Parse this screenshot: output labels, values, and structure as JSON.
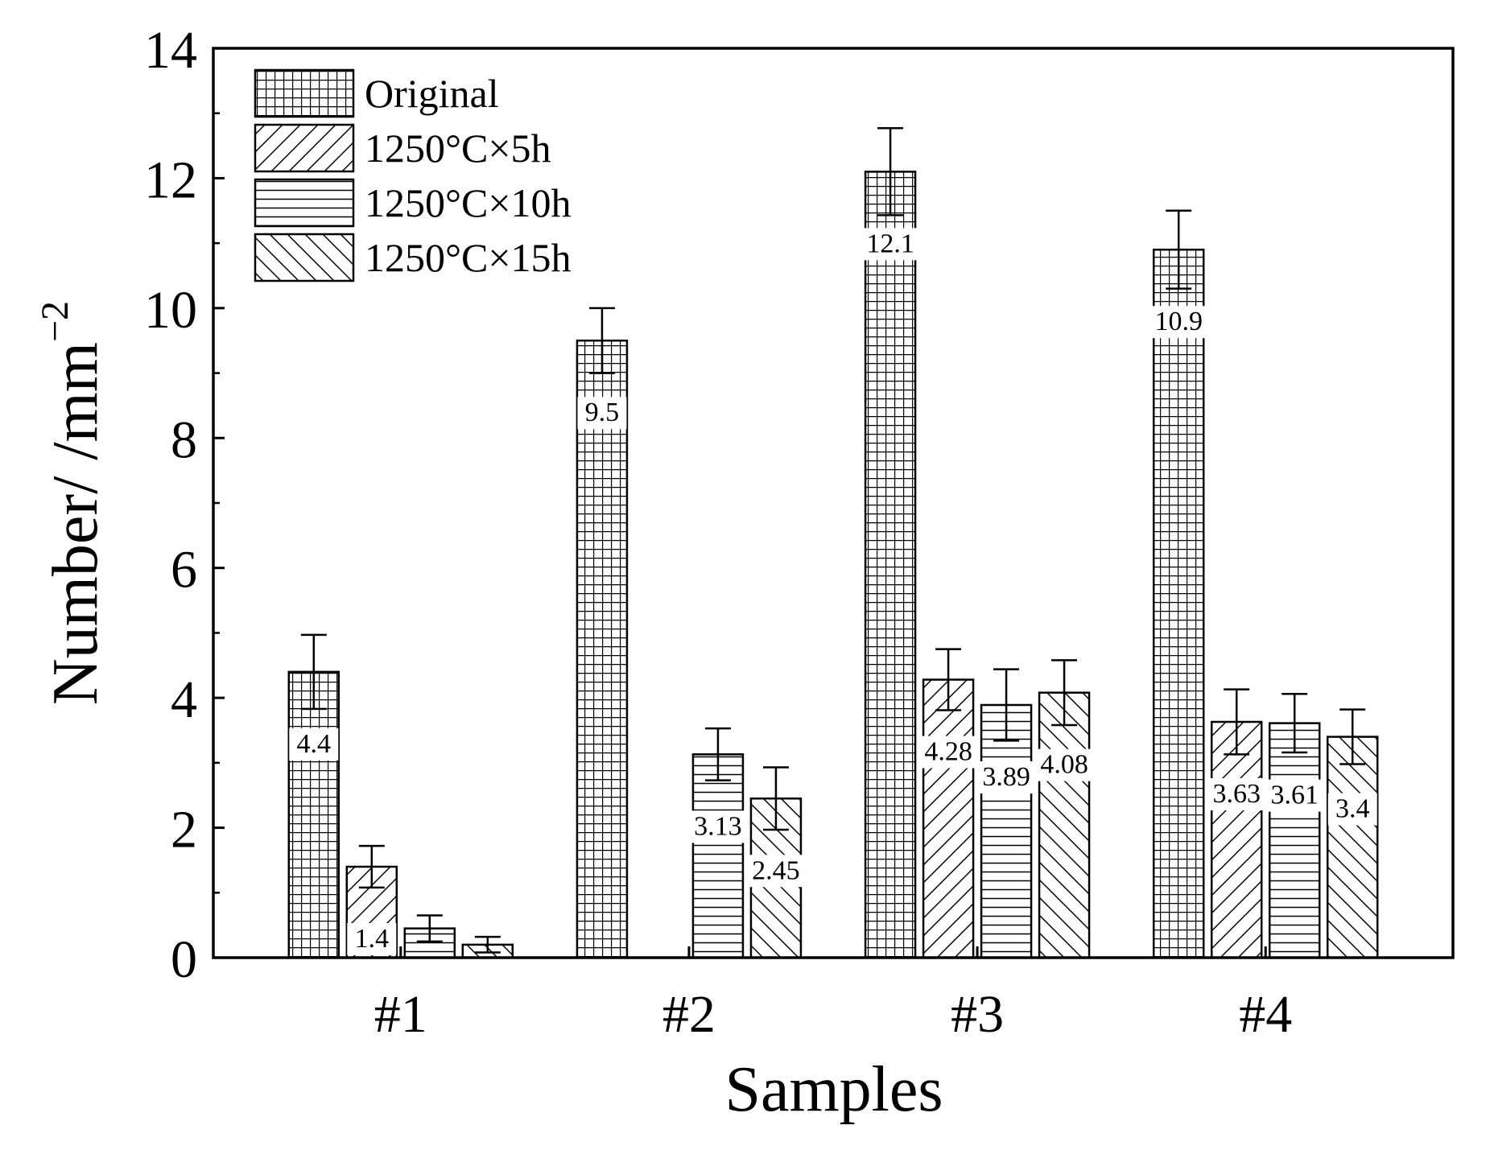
{
  "chart_data": {
    "type": "bar",
    "title": "",
    "xlabel": "Samples",
    "ylabel": "Number/ /mm",
    "ylabel_superscript": "−2",
    "categories": [
      "#1",
      "#2",
      "#3",
      "#4"
    ],
    "ylim": [
      0,
      14
    ],
    "yticks": [
      "0",
      "2",
      "4",
      "6",
      "8",
      "10",
      "12",
      "14"
    ],
    "legend_position": "top-left",
    "series": [
      {
        "name": "Original",
        "pattern": "grid",
        "values": [
          4.4,
          9.5,
          12.1,
          10.9
        ],
        "errors": [
          0.57,
          0.5,
          0.67,
          0.6
        ],
        "labels": [
          "4.4",
          "9.5",
          "12.1",
          "10.9"
        ]
      },
      {
        "name": "1250°C×5h",
        "pattern": "forward-diagonal",
        "values": [
          1.4,
          null,
          4.28,
          3.63
        ],
        "errors": [
          0.32,
          null,
          0.47,
          0.5
        ],
        "labels": [
          "1.4",
          "",
          "4.28",
          "3.63"
        ]
      },
      {
        "name": "1250°C×10h",
        "pattern": "horizontal",
        "values": [
          0.45,
          3.13,
          3.89,
          3.61
        ],
        "errors": [
          0.2,
          0.4,
          0.55,
          0.45
        ],
        "labels": [
          "",
          "3.13",
          "3.89",
          "3.61"
        ]
      },
      {
        "name": "1250°C×15h",
        "pattern": "backward-diagonal",
        "values": [
          0.2,
          2.45,
          4.08,
          3.4
        ],
        "errors": [
          0.12,
          0.48,
          0.5,
          0.42
        ],
        "labels": [
          "",
          "2.45",
          "4.08",
          "3.4"
        ]
      }
    ],
    "colors": {
      "stroke": "#000000",
      "background": "#ffffff"
    }
  }
}
